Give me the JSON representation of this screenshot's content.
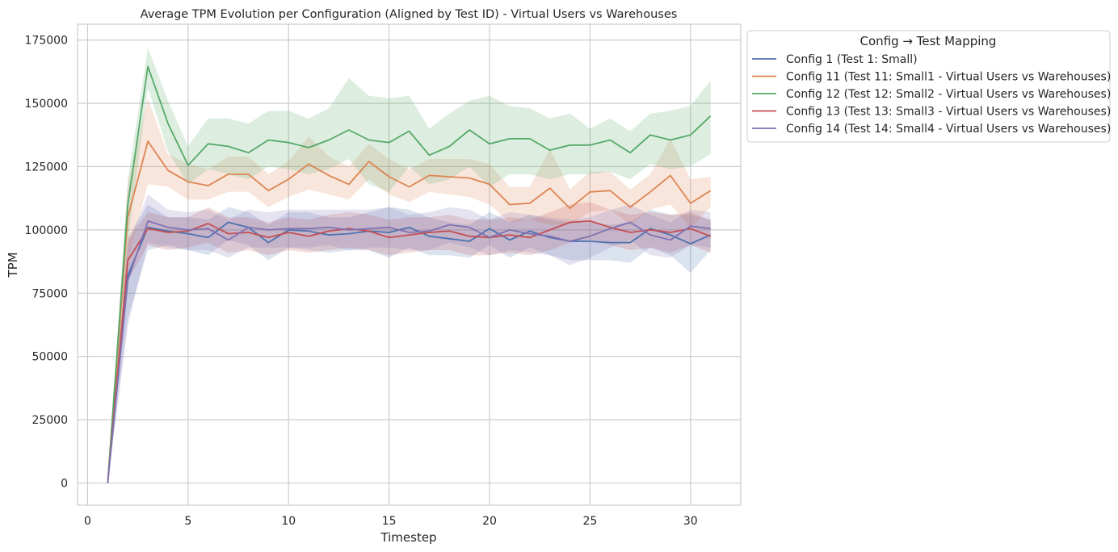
{
  "chart_data": {
    "type": "line",
    "title": "Average TPM Evolution per Configuration (Aligned by Test ID) - Virtual Users vs Warehouses",
    "xlabel": "Timestep",
    "ylabel": "TPM",
    "xlim": [
      -0.5,
      32.5
    ],
    "ylim": [
      -8750,
      181250
    ],
    "xticks": [
      0,
      5,
      10,
      15,
      20,
      25,
      30
    ],
    "yticks": [
      0,
      25000,
      50000,
      75000,
      100000,
      125000,
      150000,
      175000
    ],
    "grid": true,
    "legend": {
      "title": "Config → Test Mapping",
      "placement": "outside-top-right"
    },
    "x": [
      1,
      2,
      3,
      4,
      5,
      6,
      7,
      8,
      9,
      10,
      11,
      12,
      13,
      14,
      15,
      16,
      17,
      18,
      19,
      20,
      21,
      22,
      23,
      24,
      25,
      26,
      27,
      28,
      29,
      30,
      31
    ],
    "series": [
      {
        "name": "Config 1 (Test 1: Small)",
        "color": "#4c72b0",
        "values": [
          0,
          82000,
          101000,
          99500,
          98500,
          97000,
          103000,
          101000,
          95000,
          100000,
          99500,
          98000,
          98500,
          99500,
          99000,
          101000,
          97500,
          96500,
          95500,
          100500,
          96000,
          99500,
          97000,
          95500,
          95500,
          95000,
          95000,
          100500,
          98000,
          94500,
          98000
        ],
        "lower": [
          0,
          65000,
          92000,
          94000,
          92000,
          90000,
          96000,
          94000,
          88000,
          93000,
          92000,
          91000,
          92000,
          92000,
          89000,
          93000,
          90000,
          90000,
          89000,
          94000,
          89000,
          93000,
          90000,
          88000,
          88000,
          88000,
          87000,
          93000,
          90000,
          83000,
          92000
        ],
        "upper": [
          0,
          97000,
          110000,
          105000,
          105000,
          104000,
          109000,
          107000,
          102000,
          107000,
          107000,
          105000,
          105000,
          107000,
          109000,
          108000,
          105000,
          103000,
          102000,
          107000,
          103000,
          106000,
          104000,
          103000,
          103000,
          102000,
          103000,
          108000,
          106000,
          106000,
          104000
        ]
      },
      {
        "name": "Config 11 (Test 11: Small1 - Virtual Users vs Warehouses)",
        "color": "#dd8452",
        "values": [
          0,
          105000,
          135000,
          123500,
          119000,
          117500,
          122000,
          122000,
          115500,
          120000,
          126000,
          121500,
          118000,
          127000,
          121000,
          117000,
          121500,
          121000,
          120500,
          118000,
          110000,
          110500,
          116500,
          108500,
          115000,
          115500,
          109000,
          115000,
          121500,
          110500,
          115500
        ],
        "lower": [
          0,
          88000,
          118000,
          117000,
          112000,
          112000,
          115000,
          115000,
          109000,
          113000,
          116000,
          114000,
          112000,
          120000,
          114000,
          111000,
          115000,
          114000,
          113000,
          110000,
          103000,
          104000,
          102000,
          102000,
          107000,
          108000,
          102000,
          108000,
          110000,
          101000,
          109000
        ],
        "upper": [
          0,
          118000,
          152000,
          130000,
          126000,
          124000,
          129000,
          129000,
          122000,
          127000,
          137000,
          129000,
          125000,
          134000,
          128000,
          124000,
          128000,
          128000,
          128000,
          126000,
          117000,
          117000,
          132000,
          116000,
          123000,
          123000,
          116000,
          122000,
          136000,
          120000,
          121000
        ]
      },
      {
        "name": "Config 12 (Test 12: Small2 - Virtual Users vs Warehouses)",
        "color": "#55a868",
        "values": [
          0,
          110000,
          164500,
          142000,
          125500,
          134000,
          133000,
          130500,
          135500,
          134500,
          132500,
          135500,
          139500,
          135500,
          134500,
          139000,
          129500,
          133000,
          139500,
          134000,
          136000,
          136000,
          131500,
          133500,
          133500,
          135500,
          130500,
          137500,
          135500,
          137500,
          145000
        ],
        "lower": [
          0,
          95000,
          156000,
          131000,
          118000,
          124000,
          122000,
          120000,
          125000,
          124000,
          122000,
          124000,
          128000,
          118000,
          115000,
          125000,
          118000,
          120000,
          125000,
          117000,
          122000,
          122000,
          120000,
          122000,
          122000,
          123000,
          120000,
          126000,
          124000,
          125000,
          130000
        ],
        "upper": [
          0,
          120000,
          172000,
          151000,
          133000,
          144000,
          144000,
          142000,
          147000,
          147000,
          144000,
          148000,
          160000,
          153000,
          152000,
          153000,
          140000,
          146000,
          151000,
          153000,
          149000,
          148000,
          144000,
          146000,
          140000,
          144000,
          139000,
          146000,
          147000,
          149000,
          159000
        ]
      },
      {
        "name": "Config 13 (Test 13: Small3 - Virtual Users vs Warehouses)",
        "color": "#c44e52",
        "values": [
          0,
          88000,
          100500,
          99000,
          99500,
          102500,
          98500,
          99000,
          97000,
          99000,
          97500,
          99500,
          100500,
          99500,
          97000,
          98000,
          99000,
          99500,
          97500,
          97000,
          98000,
          97000,
          100000,
          103000,
          103500,
          101000,
          99000,
          100000,
          99000,
          100500,
          97500
        ],
        "lower": [
          0,
          80000,
          94000,
          92000,
          93000,
          95000,
          91000,
          92000,
          90000,
          92000,
          91000,
          92000,
          93000,
          92000,
          90000,
          91000,
          92000,
          92000,
          90000,
          90000,
          91000,
          90000,
          92000,
          95000,
          96000,
          94000,
          92000,
          93000,
          91000,
          94000,
          91000
        ],
        "upper": [
          0,
          96000,
          107000,
          105000,
          105000,
          109000,
          105000,
          105000,
          103000,
          105000,
          104000,
          106000,
          107000,
          106000,
          104000,
          105000,
          105000,
          106000,
          104000,
          104000,
          105000,
          104000,
          107000,
          110000,
          111000,
          108000,
          106000,
          107000,
          106000,
          107000,
          104000
        ]
      },
      {
        "name": "Config 14 (Test 14: Small4 - Virtual Users vs Warehouses)",
        "color": "#8172b3",
        "values": [
          0,
          80000,
          103500,
          101000,
          100000,
          100500,
          96000,
          101000,
          100000,
          100500,
          100500,
          101000,
          100000,
          100500,
          101000,
          99000,
          99500,
          102000,
          101000,
          97000,
          100000,
          98500,
          97500,
          95500,
          97500,
          100500,
          103000,
          98000,
          96000,
          101500,
          100500
        ],
        "lower": [
          0,
          62000,
          95000,
          93000,
          92000,
          92000,
          89000,
          93000,
          93000,
          93000,
          93000,
          94000,
          92000,
          93000,
          93000,
          92000,
          92000,
          95000,
          93000,
          90000,
          92000,
          91000,
          90000,
          86000,
          89000,
          93000,
          96000,
          90000,
          89000,
          94000,
          93000
        ],
        "upper": [
          0,
          94000,
          114000,
          108000,
          107000,
          108000,
          104000,
          108000,
          107000,
          108000,
          108000,
          108000,
          108000,
          108000,
          109000,
          106000,
          107000,
          109000,
          108000,
          104000,
          107000,
          106000,
          105000,
          104000,
          105000,
          108000,
          110000,
          106000,
          103000,
          108000,
          107000
        ]
      }
    ]
  }
}
